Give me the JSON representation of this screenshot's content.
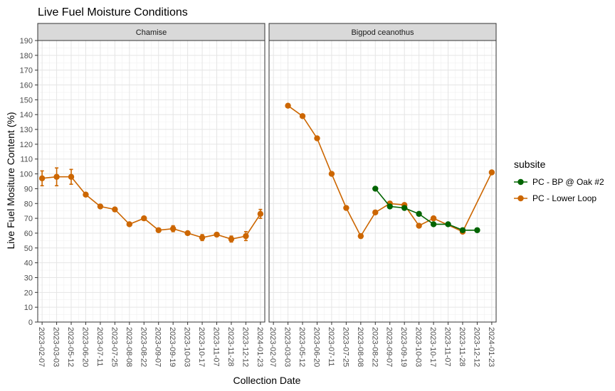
{
  "chart_data": {
    "type": "line",
    "title": "Live Fuel Moisture Conditions",
    "xlabel": "Collection Date",
    "ylabel": "Live Fuel Mositure Content (%)",
    "ylim": [
      0,
      190
    ],
    "y_ticks": [
      0,
      10,
      20,
      30,
      40,
      50,
      60,
      70,
      80,
      90,
      100,
      110,
      120,
      130,
      140,
      150,
      160,
      170,
      180,
      190
    ],
    "grid": true,
    "legend_position": "right",
    "legend_title": "subsite",
    "categories": [
      "2023-02-07",
      "2023-03-03",
      "2023-05-12",
      "2023-06-20",
      "2023-07-11",
      "2023-07-25",
      "2023-08-08",
      "2023-08-22",
      "2023-09-07",
      "2023-09-19",
      "2023-10-03",
      "2023-10-17",
      "2023-11-07",
      "2023-11-28",
      "2023-12-12",
      "2024-01-23"
    ],
    "colors": {
      "PC - BP @ Oak #2": "#006400",
      "PC - Lower Loop": "#cc6600"
    },
    "legend": [
      {
        "name": "PC - BP @ Oak #2",
        "color": "#006400"
      },
      {
        "name": "PC - Lower Loop",
        "color": "#cc6600"
      }
    ],
    "panels": [
      {
        "label": "Chamise",
        "series": [
          {
            "name": "PC - Lower Loop",
            "color": "#cc6600",
            "points": [
              {
                "x": "2023-02-07",
                "y": 97,
                "err": 5
              },
              {
                "x": "2023-03-03",
                "y": 98,
                "err": 6
              },
              {
                "x": "2023-05-12",
                "y": 98,
                "err": 5
              },
              {
                "x": "2023-06-20",
                "y": 86
              },
              {
                "x": "2023-07-11",
                "y": 78
              },
              {
                "x": "2023-07-25",
                "y": 76
              },
              {
                "x": "2023-08-08",
                "y": 66
              },
              {
                "x": "2023-08-22",
                "y": 70
              },
              {
                "x": "2023-09-07",
                "y": 62
              },
              {
                "x": "2023-09-19",
                "y": 63,
                "err": 2
              },
              {
                "x": "2023-10-03",
                "y": 60
              },
              {
                "x": "2023-10-17",
                "y": 57,
                "err": 2
              },
              {
                "x": "2023-11-07",
                "y": 59
              },
              {
                "x": "2023-11-28",
                "y": 56,
                "err": 2
              },
              {
                "x": "2023-12-12",
                "y": 58,
                "err": 3
              },
              {
                "x": "2024-01-23",
                "y": 73,
                "err": 3
              }
            ]
          }
        ]
      },
      {
        "label": "Bigpod ceanothus",
        "series": [
          {
            "name": "PC - Lower Loop",
            "color": "#cc6600",
            "points": [
              {
                "x": "2023-03-03",
                "y": 146
              },
              {
                "x": "2023-05-12",
                "y": 139
              },
              {
                "x": "2023-06-20",
                "y": 124
              },
              {
                "x": "2023-07-11",
                "y": 100
              },
              {
                "x": "2023-07-25",
                "y": 77
              },
              {
                "x": "2023-08-08",
                "y": 58
              },
              {
                "x": "2023-08-22",
                "y": 74
              },
              {
                "x": "2023-09-07",
                "y": 80
              },
              {
                "x": "2023-09-19",
                "y": 79
              },
              {
                "x": "2023-10-03",
                "y": 65
              },
              {
                "x": "2023-10-17",
                "y": 70
              },
              {
                "x": "2023-11-28",
                "y": 61
              },
              {
                "x": "2024-01-23",
                "y": 101
              }
            ]
          },
          {
            "name": "PC - BP @ Oak #2",
            "color": "#006400",
            "points": [
              {
                "x": "2023-08-22",
                "y": 90
              },
              {
                "x": "2023-09-07",
                "y": 78
              },
              {
                "x": "2023-09-19",
                "y": 77
              },
              {
                "x": "2023-10-03",
                "y": 73
              },
              {
                "x": "2023-10-17",
                "y": 66
              },
              {
                "x": "2023-11-07",
                "y": 66
              },
              {
                "x": "2023-11-28",
                "y": 62
              },
              {
                "x": "2023-12-12",
                "y": 62
              }
            ]
          }
        ]
      }
    ]
  }
}
